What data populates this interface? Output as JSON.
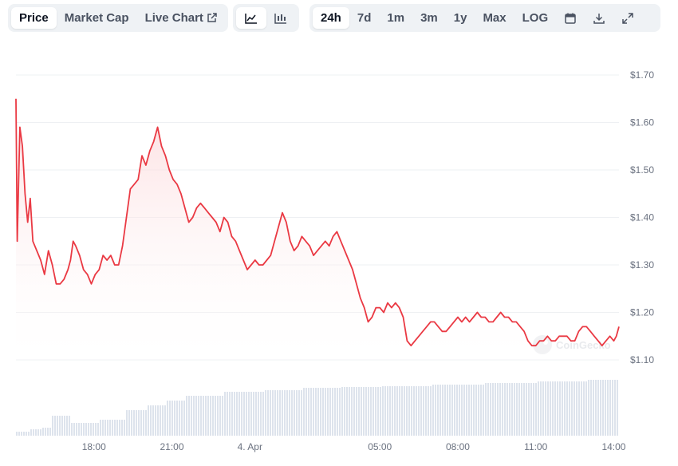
{
  "tabs": [
    {
      "label": "Price",
      "active": true
    },
    {
      "label": "Market Cap",
      "active": false
    },
    {
      "label": "Live Chart",
      "active": false
    }
  ],
  "chart_style_icons": [
    "line-chart-icon",
    "candlestick-chart-icon"
  ],
  "ranges": [
    {
      "label": "24h",
      "active": true
    },
    {
      "label": "7d",
      "active": false
    },
    {
      "label": "1m",
      "active": false
    },
    {
      "label": "3m",
      "active": false
    },
    {
      "label": "1y",
      "active": false
    },
    {
      "label": "Max",
      "active": false
    },
    {
      "label": "LOG",
      "active": false
    }
  ],
  "tool_icons": [
    "calendar-icon",
    "download-icon",
    "expand-icon"
  ],
  "watermark": "CoinGecko",
  "colors": {
    "line": "#ea3943",
    "fill_top": "#fbd3d5",
    "volume": "#dde3ec",
    "grid": "#eef0f3",
    "axis_text": "#6b7280"
  },
  "chart_data": {
    "type": "line",
    "title": "",
    "xlabel": "",
    "ylabel": "",
    "ylim": [
      1.1,
      1.7
    ],
    "y_ticks": [
      "$1.70",
      "$1.60",
      "$1.50",
      "$1.40",
      "$1.30",
      "$1.20",
      "$1.10"
    ],
    "y_tick_values": [
      1.7,
      1.6,
      1.5,
      1.4,
      1.3,
      1.2,
      1.1
    ],
    "x_range_hours": [
      0,
      23.2
    ],
    "x_ticks": [
      {
        "label": "18:00",
        "t": 3.0
      },
      {
        "label": "21:00",
        "t": 6.0
      },
      {
        "label": "4. Apr",
        "t": 9.0
      },
      {
        "label": "05:00",
        "t": 14.0
      },
      {
        "label": "08:00",
        "t": 17.0
      },
      {
        "label": "11:00",
        "t": 20.0
      },
      {
        "label": "14:00",
        "t": 23.0
      }
    ],
    "series": [
      {
        "values": [
          [
            0.0,
            1.65
          ],
          [
            0.05,
            1.35
          ],
          [
            0.15,
            1.59
          ],
          [
            0.25,
            1.55
          ],
          [
            0.35,
            1.45
          ],
          [
            0.45,
            1.39
          ],
          [
            0.55,
            1.44
          ],
          [
            0.65,
            1.35
          ],
          [
            0.8,
            1.33
          ],
          [
            0.95,
            1.31
          ],
          [
            1.1,
            1.28
          ],
          [
            1.25,
            1.33
          ],
          [
            1.4,
            1.3
          ],
          [
            1.55,
            1.26
          ],
          [
            1.7,
            1.26
          ],
          [
            1.85,
            1.27
          ],
          [
            2.0,
            1.29
          ],
          [
            2.1,
            1.31
          ],
          [
            2.2,
            1.35
          ],
          [
            2.3,
            1.34
          ],
          [
            2.45,
            1.32
          ],
          [
            2.6,
            1.29
          ],
          [
            2.75,
            1.28
          ],
          [
            2.9,
            1.26
          ],
          [
            3.05,
            1.28
          ],
          [
            3.2,
            1.29
          ],
          [
            3.35,
            1.32
          ],
          [
            3.5,
            1.31
          ],
          [
            3.65,
            1.32
          ],
          [
            3.8,
            1.3
          ],
          [
            3.95,
            1.3
          ],
          [
            4.1,
            1.34
          ],
          [
            4.25,
            1.4
          ],
          [
            4.4,
            1.46
          ],
          [
            4.55,
            1.47
          ],
          [
            4.7,
            1.48
          ],
          [
            4.85,
            1.53
          ],
          [
            5.0,
            1.51
          ],
          [
            5.15,
            1.54
          ],
          [
            5.3,
            1.56
          ],
          [
            5.45,
            1.59
          ],
          [
            5.6,
            1.55
          ],
          [
            5.75,
            1.53
          ],
          [
            5.9,
            1.5
          ],
          [
            6.05,
            1.48
          ],
          [
            6.2,
            1.47
          ],
          [
            6.35,
            1.45
          ],
          [
            6.5,
            1.42
          ],
          [
            6.65,
            1.39
          ],
          [
            6.8,
            1.4
          ],
          [
            6.95,
            1.42
          ],
          [
            7.1,
            1.43
          ],
          [
            7.25,
            1.42
          ],
          [
            7.4,
            1.41
          ],
          [
            7.55,
            1.4
          ],
          [
            7.7,
            1.39
          ],
          [
            7.85,
            1.37
          ],
          [
            8.0,
            1.4
          ],
          [
            8.15,
            1.39
          ],
          [
            8.3,
            1.36
          ],
          [
            8.45,
            1.35
          ],
          [
            8.6,
            1.33
          ],
          [
            8.75,
            1.31
          ],
          [
            8.9,
            1.29
          ],
          [
            9.05,
            1.3
          ],
          [
            9.2,
            1.31
          ],
          [
            9.35,
            1.3
          ],
          [
            9.5,
            1.3
          ],
          [
            9.65,
            1.31
          ],
          [
            9.8,
            1.32
          ],
          [
            9.95,
            1.35
          ],
          [
            10.1,
            1.38
          ],
          [
            10.25,
            1.41
          ],
          [
            10.4,
            1.39
          ],
          [
            10.55,
            1.35
          ],
          [
            10.7,
            1.33
          ],
          [
            10.85,
            1.34
          ],
          [
            11.0,
            1.36
          ],
          [
            11.15,
            1.35
          ],
          [
            11.3,
            1.34
          ],
          [
            11.45,
            1.32
          ],
          [
            11.6,
            1.33
          ],
          [
            11.75,
            1.34
          ],
          [
            11.9,
            1.35
          ],
          [
            12.05,
            1.34
          ],
          [
            12.2,
            1.36
          ],
          [
            12.35,
            1.37
          ],
          [
            12.5,
            1.35
          ],
          [
            12.65,
            1.33
          ],
          [
            12.8,
            1.31
          ],
          [
            12.95,
            1.29
          ],
          [
            13.1,
            1.26
          ],
          [
            13.25,
            1.23
          ],
          [
            13.4,
            1.21
          ],
          [
            13.55,
            1.18
          ],
          [
            13.7,
            1.19
          ],
          [
            13.85,
            1.21
          ],
          [
            14.0,
            1.21
          ],
          [
            14.15,
            1.2
          ],
          [
            14.3,
            1.22
          ],
          [
            14.45,
            1.21
          ],
          [
            14.6,
            1.22
          ],
          [
            14.75,
            1.21
          ],
          [
            14.9,
            1.19
          ],
          [
            15.05,
            1.14
          ],
          [
            15.2,
            1.13
          ],
          [
            15.35,
            1.14
          ],
          [
            15.5,
            1.15
          ],
          [
            15.65,
            1.16
          ],
          [
            15.8,
            1.17
          ],
          [
            15.95,
            1.18
          ],
          [
            16.1,
            1.18
          ],
          [
            16.25,
            1.17
          ],
          [
            16.4,
            1.16
          ],
          [
            16.55,
            1.16
          ],
          [
            16.7,
            1.17
          ],
          [
            16.85,
            1.18
          ],
          [
            17.0,
            1.19
          ],
          [
            17.15,
            1.18
          ],
          [
            17.3,
            1.19
          ],
          [
            17.45,
            1.18
          ],
          [
            17.6,
            1.19
          ],
          [
            17.75,
            1.2
          ],
          [
            17.9,
            1.19
          ],
          [
            18.05,
            1.19
          ],
          [
            18.2,
            1.18
          ],
          [
            18.35,
            1.18
          ],
          [
            18.5,
            1.19
          ],
          [
            18.65,
            1.2
          ],
          [
            18.8,
            1.19
          ],
          [
            18.95,
            1.19
          ],
          [
            19.1,
            1.18
          ],
          [
            19.25,
            1.18
          ],
          [
            19.4,
            1.17
          ],
          [
            19.55,
            1.16
          ],
          [
            19.7,
            1.14
          ],
          [
            19.85,
            1.13
          ],
          [
            20.0,
            1.13
          ],
          [
            20.15,
            1.14
          ],
          [
            20.3,
            1.14
          ],
          [
            20.45,
            1.15
          ],
          [
            20.6,
            1.14
          ],
          [
            20.75,
            1.14
          ],
          [
            20.9,
            1.15
          ],
          [
            21.05,
            1.15
          ],
          [
            21.2,
            1.15
          ],
          [
            21.35,
            1.14
          ],
          [
            21.5,
            1.14
          ],
          [
            21.65,
            1.16
          ],
          [
            21.8,
            1.17
          ],
          [
            21.95,
            1.17
          ],
          [
            22.1,
            1.16
          ],
          [
            22.25,
            1.15
          ],
          [
            22.4,
            1.14
          ],
          [
            22.55,
            1.13
          ],
          [
            22.7,
            1.14
          ],
          [
            22.85,
            1.15
          ],
          [
            23.0,
            1.14
          ],
          [
            23.1,
            1.15
          ],
          [
            23.2,
            1.17
          ]
        ]
      }
    ],
    "volume_levels": [
      [
        0,
        0.05
      ],
      [
        0.5,
        0.08
      ],
      [
        1.0,
        0.1
      ],
      [
        1.3,
        0.25
      ],
      [
        2.1,
        0.16
      ],
      [
        3.2,
        0.2
      ],
      [
        4.2,
        0.32
      ],
      [
        5.0,
        0.38
      ],
      [
        5.8,
        0.44
      ],
      [
        6.5,
        0.5
      ],
      [
        8.0,
        0.55
      ],
      [
        9.5,
        0.57
      ],
      [
        11.0,
        0.6
      ],
      [
        12.5,
        0.61
      ],
      [
        14.0,
        0.62
      ],
      [
        16.0,
        0.64
      ],
      [
        18.0,
        0.66
      ],
      [
        20.0,
        0.68
      ],
      [
        22.0,
        0.7
      ],
      [
        23.2,
        0.71
      ]
    ]
  }
}
